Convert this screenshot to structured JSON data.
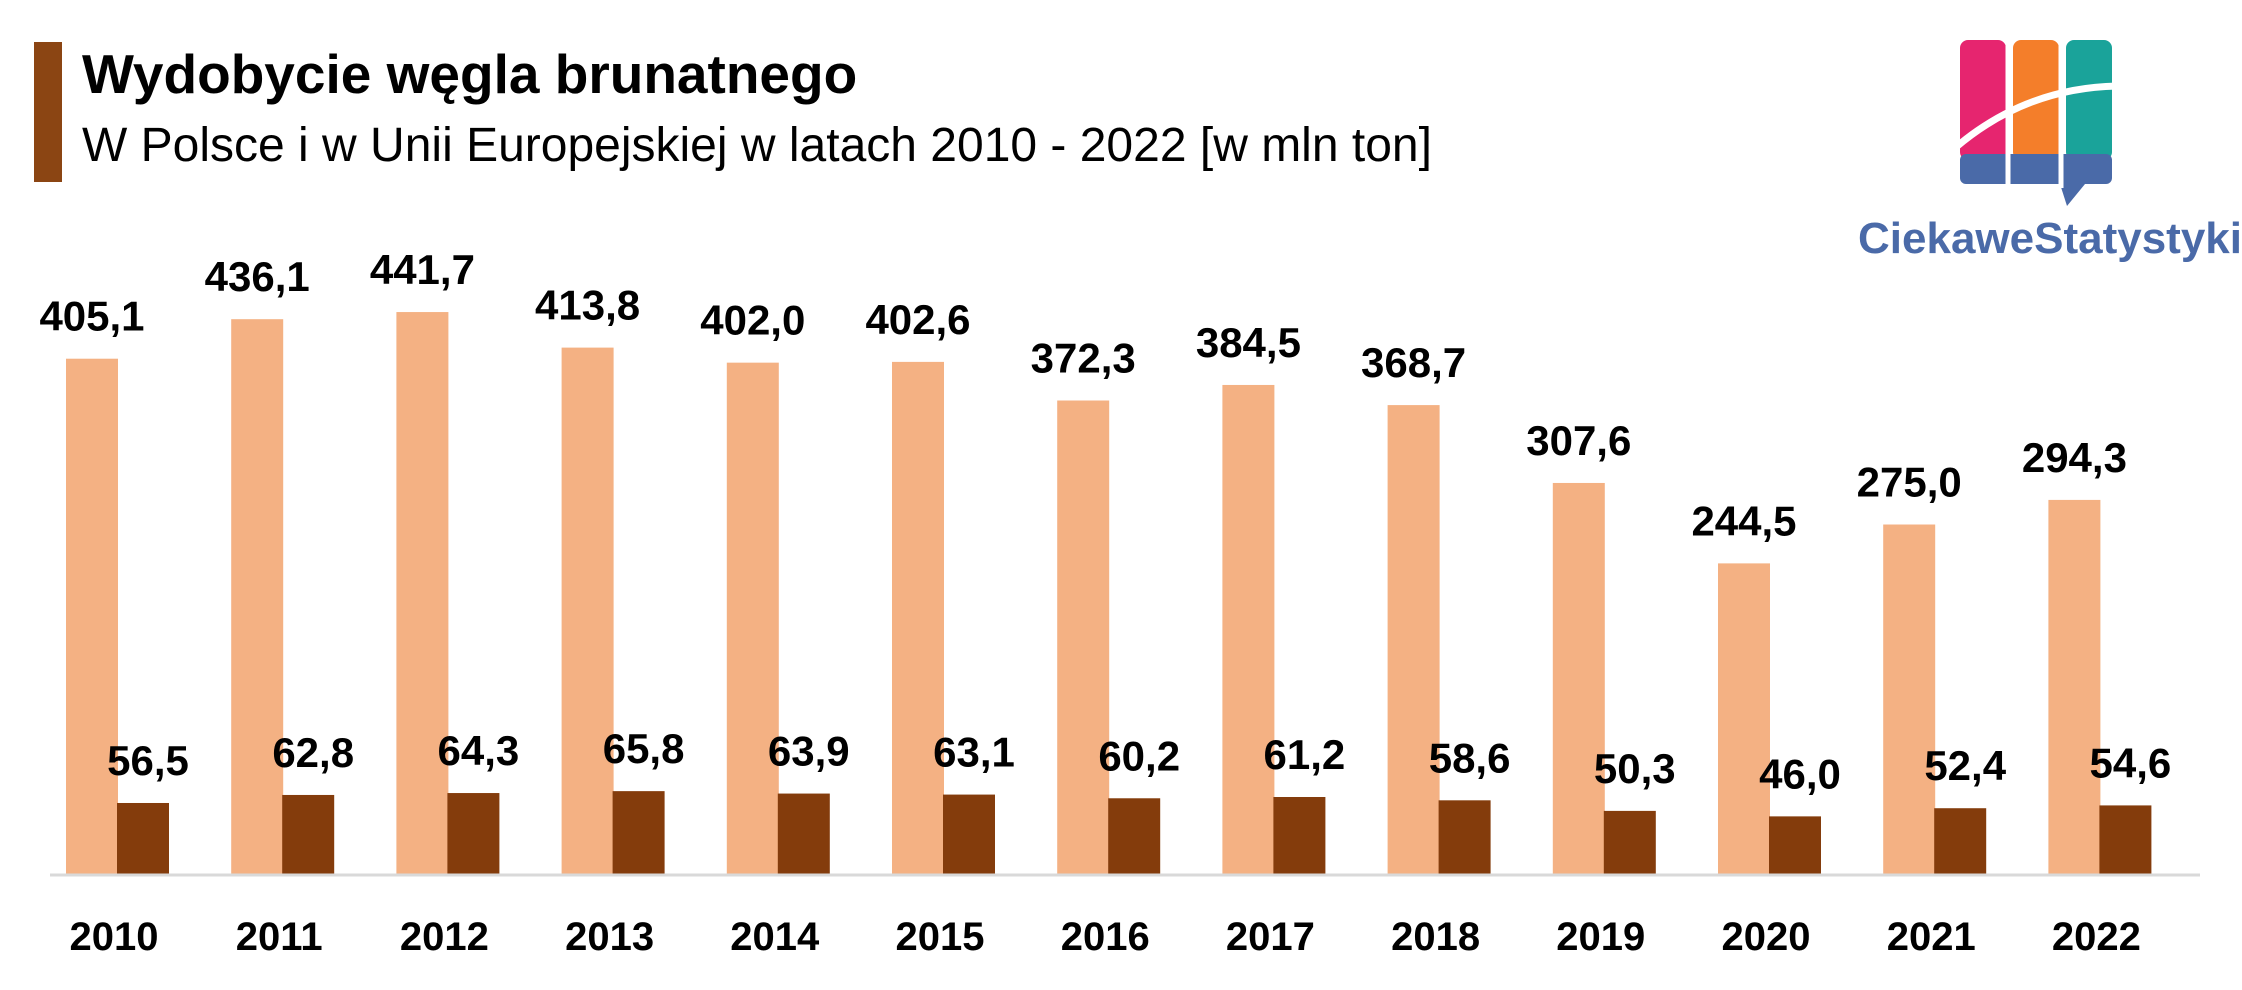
{
  "header": {
    "title": "Wydobycie węgla brunatnego",
    "subtitle": "W Polsce i w Unii Europejskiej w latach 2010 - 2022 [w mln ton]"
  },
  "logo": {
    "text": "CiekaweStatystyki.pl",
    "colors": [
      "#e6256f",
      "#f47e2a",
      "#1aa39a",
      "#4a6aa8"
    ]
  },
  "colors": {
    "accent": "#8B4513",
    "series_eu": "#F4B183",
    "series_pl": "#843C0C",
    "axis": "#d9d9d9"
  },
  "chart_data": {
    "type": "bar",
    "categories": [
      "2010",
      "2011",
      "2012",
      "2013",
      "2014",
      "2015",
      "2016",
      "2017",
      "2018",
      "2019",
      "2020",
      "2021",
      "2022"
    ],
    "series": [
      {
        "values": [
          405.1,
          436.1,
          441.7,
          413.8,
          402.0,
          402.6,
          372.3,
          384.5,
          368.7,
          307.6,
          244.5,
          275.0,
          294.3
        ],
        "labels": [
          "405,1",
          "436,1",
          "441,7",
          "413,8",
          "402,0",
          "402,6",
          "372,3",
          "384,5",
          "368,7",
          "307,6",
          "244,5",
          "275,0",
          "294,3"
        ]
      },
      {
        "values": [
          56.5,
          62.8,
          64.3,
          65.8,
          63.9,
          63.1,
          60.2,
          61.2,
          58.6,
          50.3,
          46.0,
          52.4,
          54.6
        ],
        "labels": [
          "56,5",
          "62,8",
          "64,3",
          "65,8",
          "63,9",
          "63,1",
          "60,2",
          "61,2",
          "58,6",
          "50,3",
          "46,0",
          "52,4",
          "54,6"
        ]
      }
    ],
    "ylim": [
      0,
      500
    ],
    "grid": false,
    "legend": "none"
  }
}
